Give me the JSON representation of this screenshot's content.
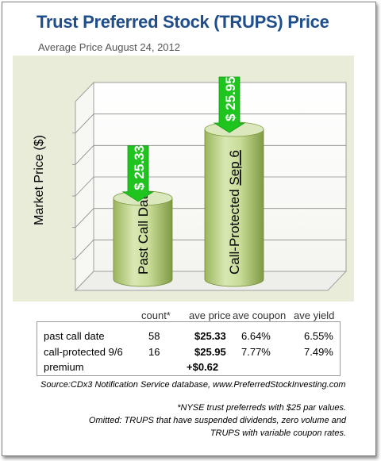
{
  "title": "Trust Preferred Stock (TRUPS) Price",
  "subtitle": "Average Price August 24, 2012",
  "chart_data": {
    "type": "bar",
    "ylabel": "Market Price ($)",
    "categories": [
      "Past Call Date",
      "Call-Protected Sep 6"
    ],
    "values": [
      25.33,
      25.95
    ],
    "data_labels": [
      "$ 25.33",
      "$ 25.95"
    ],
    "category_label_underlined_part": "Sep 6",
    "grid": true,
    "colors": {
      "bar": "#c3d69b",
      "bar_dark": "#8faa4f",
      "callout": "#1fc41f",
      "panel": "#e8ecd9"
    }
  },
  "table": {
    "headers": [
      "count*",
      "ave price",
      "ave coupon",
      "ave yield"
    ],
    "rows": [
      {
        "label": "past call date",
        "count": "58",
        "price": "$25.33",
        "coupon": "6.64%",
        "yield": "6.55%"
      },
      {
        "label": "call-protected 9/6",
        "count": "16",
        "price": "$25.95",
        "coupon": "7.77%",
        "yield": "7.49%"
      }
    ],
    "premium_label": "premium",
    "premium_value": "+$0.62"
  },
  "source": "Source:CDx3  Notification Service database, www.PreferredStockInvesting.com",
  "notes": [
    "*NYSE trust preferreds with $25 par values.",
    "Omitted: TRUPS that have  suspended dividends, zero volume and",
    "TRUPS with variable coupon rates."
  ]
}
